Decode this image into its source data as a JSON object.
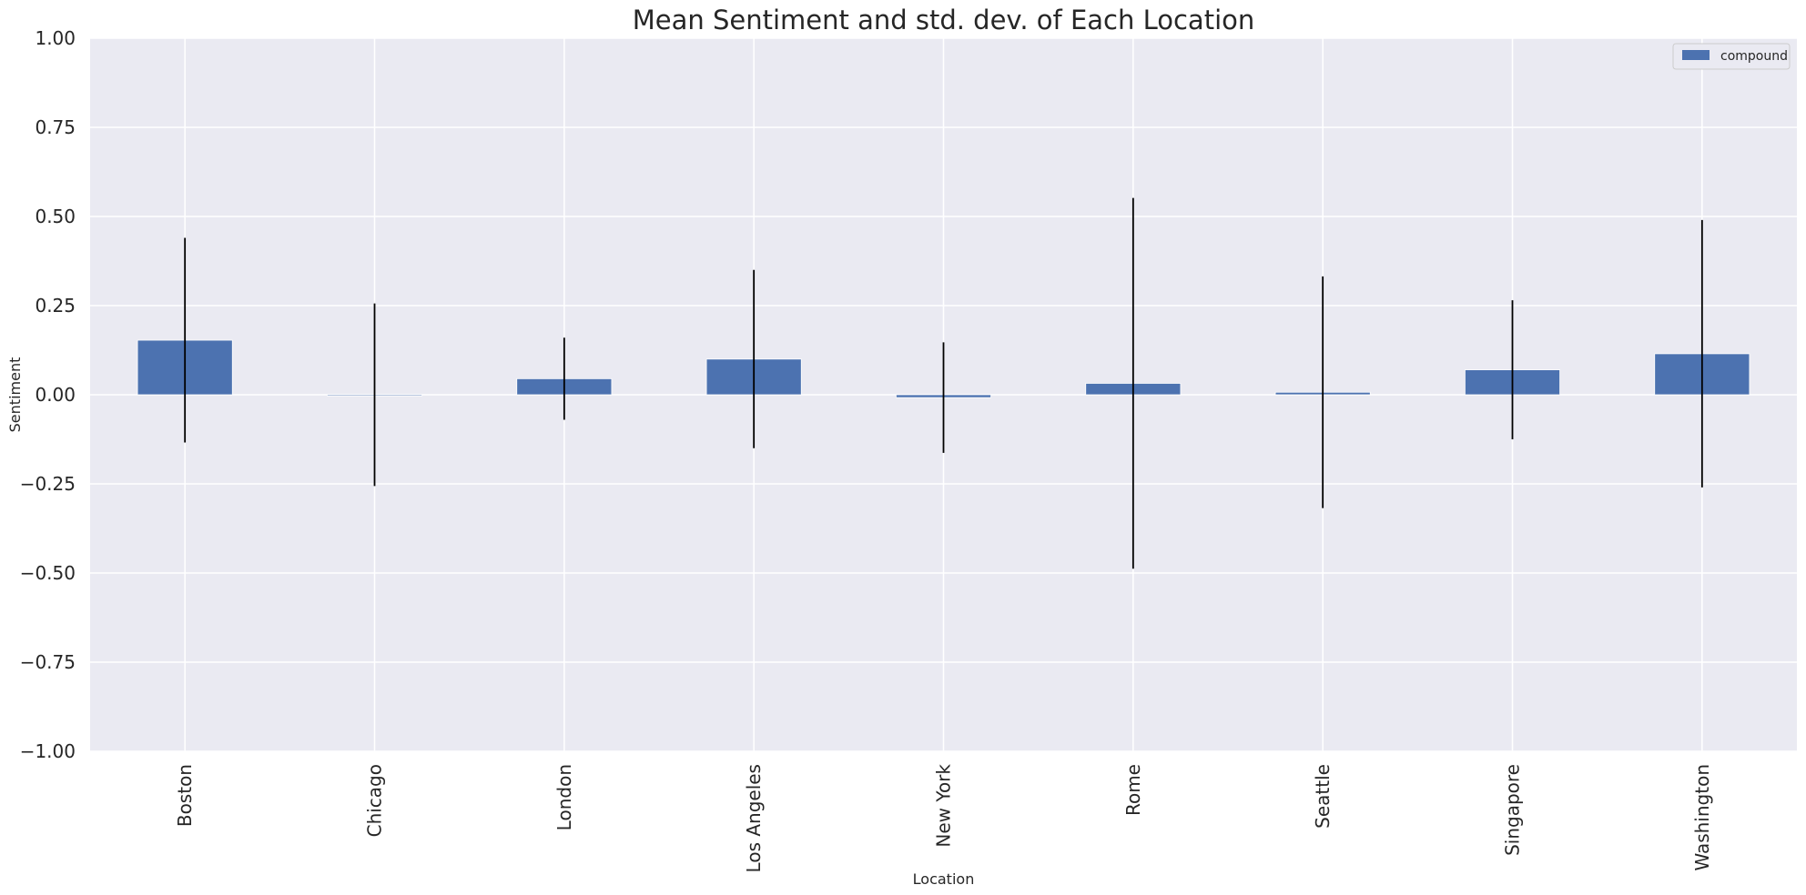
{
  "chart_data": {
    "type": "bar",
    "title": "Mean Sentiment and std. dev. of Each Location",
    "xlabel": "Location",
    "ylabel": "Sentiment",
    "ylim": [
      -1.0,
      1.0
    ],
    "yticks": [
      "1.00",
      "0.75",
      "0.50",
      "0.25",
      "0.00",
      "−0.25",
      "−0.50",
      "−0.75",
      "−1.00"
    ],
    "ytick_values": [
      1.0,
      0.75,
      0.5,
      0.25,
      0.0,
      -0.25,
      -0.5,
      -0.75,
      -1.0
    ],
    "categories": [
      "Boston",
      "Chicago",
      "London",
      "Los Angeles",
      "New York",
      "Rome",
      "Seattle",
      "Singapore",
      "Washington"
    ],
    "series": [
      {
        "name": "compound",
        "values": [
          0.153,
          0.0,
          0.045,
          0.1,
          -0.008,
          0.032,
          0.007,
          0.07,
          0.115
        ],
        "std": [
          0.287,
          0.256,
          0.115,
          0.25,
          0.155,
          0.52,
          0.325,
          0.195,
          0.375
        ]
      }
    ],
    "legend_position": "top-right",
    "grid": true,
    "colors": {
      "bar": "#4c72b0",
      "error": "#000000",
      "background": "#eaeaf2",
      "grid": "#ffffff"
    }
  }
}
